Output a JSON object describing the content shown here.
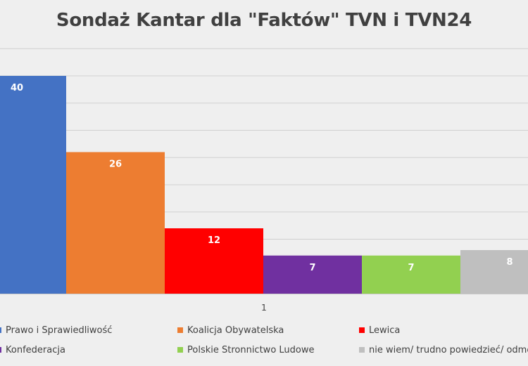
{
  "chart_data": {
    "type": "bar",
    "title": "Sondaż Kantar dla \"Faktów\" TVN i TVN24",
    "categories": [
      "1"
    ],
    "series": [
      {
        "name": "Prawo i Sprawiedliwość",
        "values": [
          40
        ],
        "color": "#4472c4"
      },
      {
        "name": "Koalicja Obywatelska",
        "values": [
          26
        ],
        "color": "#ed7d31"
      },
      {
        "name": "Lewica",
        "values": [
          12
        ],
        "color": "#ff0000"
      },
      {
        "name": "Konfederacja",
        "values": [
          7
        ],
        "color": "#7030a0"
      },
      {
        "name": "Polskie Stronnictwo Ludowe",
        "values": [
          7
        ],
        "color": "#92d050"
      },
      {
        "name": "nie wiem/ trudno powiedzieć/ odmowa",
        "values": [
          8
        ],
        "color": "#bfbfbf"
      }
    ],
    "ylim": [
      0,
      40
    ],
    "grid": true,
    "legend": "bottom"
  }
}
